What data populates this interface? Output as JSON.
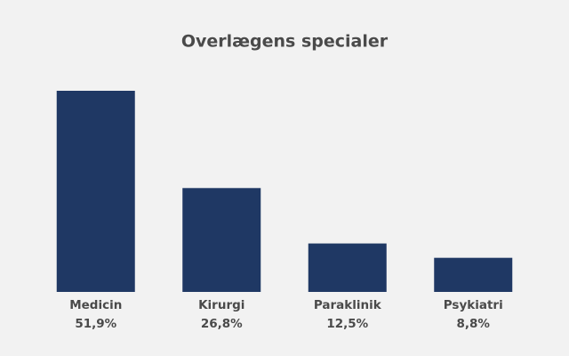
{
  "chart_data": {
    "type": "bar",
    "title": "Overlægens specialer",
    "categories": [
      "Medicin",
      "Kirurgi",
      "Paraklinik",
      "Psykiatri"
    ],
    "values": [
      51.9,
      26.8,
      12.5,
      8.8
    ],
    "value_labels": [
      "51,9%",
      "26,8%",
      "12,5%",
      "8,8%"
    ],
    "color": "#1f3864"
  }
}
